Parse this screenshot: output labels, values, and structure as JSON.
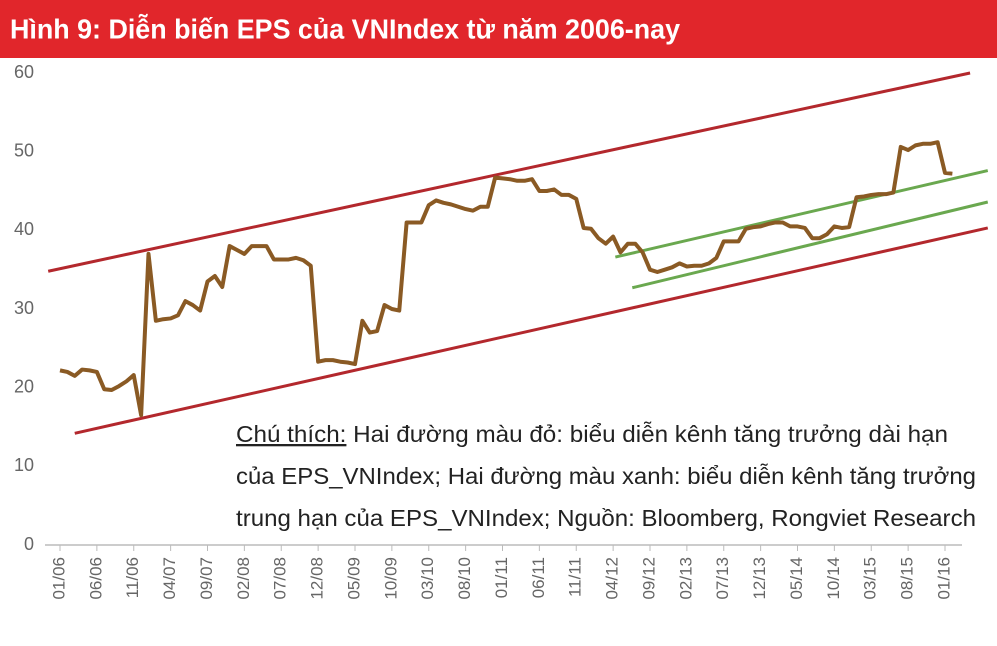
{
  "chart_data": {
    "type": "line",
    "title": "Hình 9: Diễn biến EPS của VNIndex từ năm 2006-nay",
    "categories": [
      "01/06",
      null,
      null,
      null,
      null,
      "06/06",
      null,
      null,
      null,
      null,
      "11/06",
      null,
      null,
      null,
      null,
      "04/07",
      null,
      null,
      null,
      null,
      "09/07",
      null,
      null,
      null,
      null,
      "02/08",
      null,
      null,
      null,
      null,
      "07/08",
      null,
      null,
      null,
      null,
      "12/08",
      null,
      null,
      null,
      null,
      "05/09",
      null,
      null,
      null,
      null,
      "10/09",
      null,
      null,
      null,
      null,
      "03/10",
      null,
      null,
      null,
      null,
      "08/10",
      null,
      null,
      null,
      null,
      "01/11",
      null,
      null,
      null,
      null,
      "06/11",
      null,
      null,
      null,
      null,
      "11/11",
      null,
      null,
      null,
      null,
      "04/12",
      null,
      null,
      null,
      null,
      "09/12",
      null,
      null,
      null,
      null,
      "02/13",
      null,
      null,
      null,
      null,
      "07/13",
      null,
      null,
      null,
      null,
      "12/13",
      null,
      null,
      null,
      null,
      "05/14",
      null,
      null,
      null,
      null,
      "10/14",
      null,
      null,
      null,
      null,
      "03/15",
      null,
      null,
      null,
      null,
      "08/15",
      null,
      null,
      null,
      null,
      "01/16",
      null
    ],
    "values": [
      22.2,
      22,
      21.5,
      22.3,
      22.2,
      22,
      19.8,
      19.7,
      20.2,
      20.8,
      21.6,
      16.5,
      37,
      28.5,
      28.7,
      28.8,
      29.2,
      31,
      30.5,
      29.8,
      33.5,
      34.2,
      32.8,
      38,
      37.5,
      37,
      38,
      38,
      38,
      36.3,
      36.3,
      36.3,
      36.5,
      36.2,
      35.5,
      23.3,
      23.5,
      23.5,
      23.3,
      23.2,
      23,
      28.5,
      27,
      27.2,
      30.5,
      30,
      29.8,
      41,
      41,
      41,
      43.2,
      43.8,
      43.5,
      43.3,
      43,
      42.7,
      42.5,
      43,
      43,
      46.7,
      46.6,
      46.5,
      46.3,
      46.3,
      46.5,
      45,
      45,
      45.2,
      44.5,
      44.5,
      44,
      40.3,
      40.2,
      39,
      38.3,
      39.2,
      37.2,
      38.3,
      38.3,
      37.2,
      35,
      34.7,
      35,
      35.3,
      35.8,
      35.4,
      35.5,
      35.5,
      35.8,
      36.5,
      38.6,
      38.6,
      38.6,
      40.2,
      40.4,
      40.5,
      40.8,
      41,
      41,
      40.5,
      40.5,
      40.3,
      39,
      39,
      39.5,
      40.5,
      40.3,
      40.4,
      44.2,
      44.3,
      44.5,
      44.6,
      44.6,
      44.8,
      50.6,
      50.2,
      50.8,
      51,
      51,
      51.2,
      47.3,
      47.2
    ],
    "color": "#8a5a24",
    "ylim": [
      0,
      60
    ],
    "yticks": [
      0,
      10,
      20,
      30,
      40,
      50,
      60
    ],
    "grid": false,
    "reference_lines": [
      {
        "color": "#b3282d",
        "x": [
          -1.6,
          123.4
        ],
        "y": [
          34.8,
          60
        ]
      },
      {
        "color": "#b3282d",
        "x": [
          2,
          125.8
        ],
        "y": [
          14.2,
          40.3
        ]
      },
      {
        "color": "#6aa84f",
        "x": [
          75.3,
          125.8
        ],
        "y": [
          36.6,
          47.6
        ]
      },
      {
        "color": "#6aa84f",
        "x": [
          77.6,
          125.8
        ],
        "y": [
          32.7,
          43.6
        ]
      }
    ],
    "annotation": {
      "label": "Chú thích:",
      "lines": [
        " Hai đường màu đỏ: biểu diễn kênh tăng trưởng dài hạn",
        "của EPS_VNIndex; Hai đường màu xanh: biểu diễn kênh tăng trưởng",
        "trung hạn của EPS_VNIndex; Nguồn: Bloomberg,  Rongviet Research"
      ]
    }
  }
}
